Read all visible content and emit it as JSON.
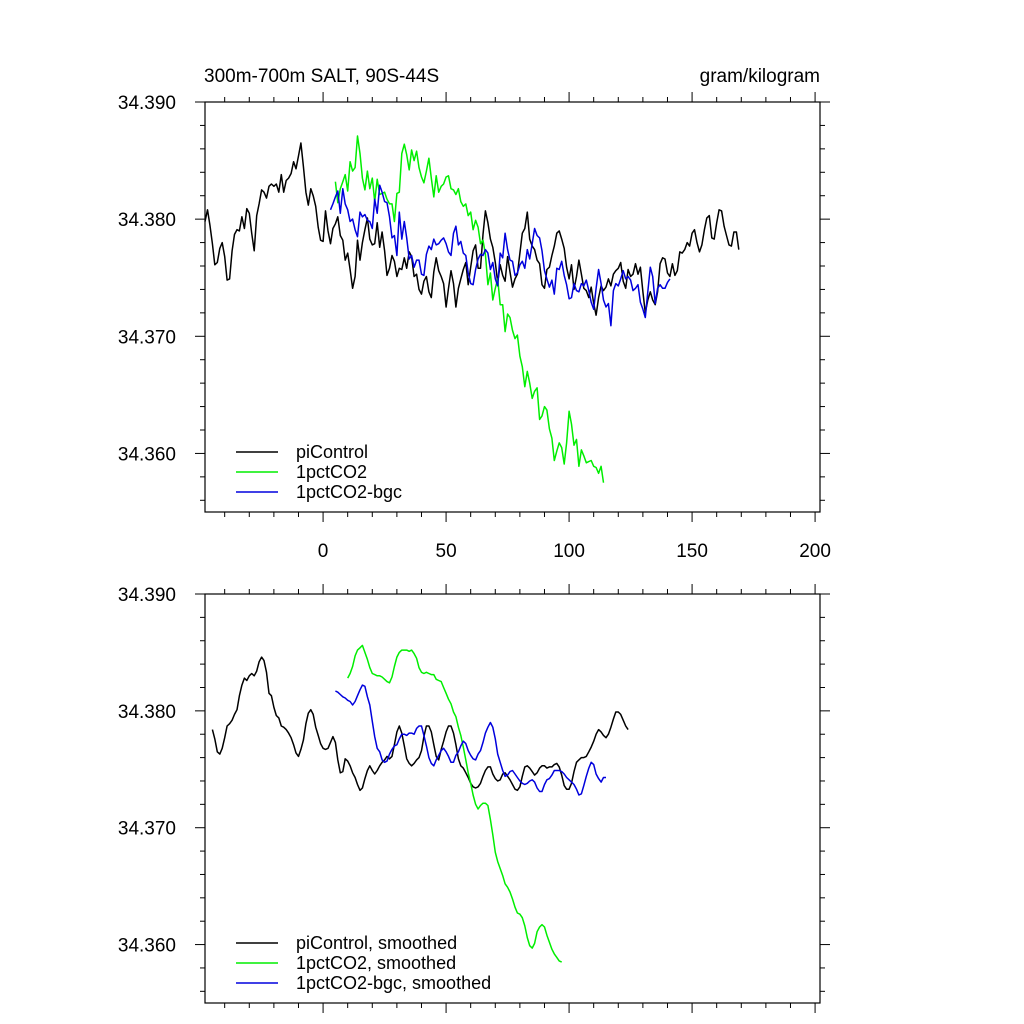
{
  "chart_data": [
    {
      "type": "line",
      "title_left": "300m-700m SALT, 90S-44S",
      "title_right": "gram/kilogram",
      "xlim": [
        -48,
        202
      ],
      "ylim": [
        34.355,
        34.39
      ],
      "x_ticks": [
        0,
        50,
        100,
        150,
        200
      ],
      "x_tick_labels": [
        "0",
        "50",
        "100",
        "150",
        "200"
      ],
      "y_ticks": [
        34.36,
        34.37,
        34.38,
        34.39
      ],
      "y_tick_labels": [
        "34.360",
        "34.370",
        "34.380",
        "34.390"
      ],
      "grid": false,
      "legend_position": "bottom-left",
      "series": [
        {
          "name": "piControl",
          "color": "#000000",
          "x_start": -48,
          "values": [
            34.3798,
            34.3808,
            34.3795,
            34.3779,
            34.3761,
            34.3763,
            34.3775,
            34.378,
            34.3768,
            34.3748,
            34.3749,
            34.3773,
            34.3787,
            34.3791,
            34.379,
            34.3802,
            34.3792,
            34.3809,
            34.3805,
            34.3788,
            34.3773,
            34.3803,
            34.3813,
            34.3825,
            34.3823,
            34.3818,
            34.3828,
            34.383,
            34.3828,
            34.383,
            34.3823,
            34.3838,
            34.3823,
            34.3833,
            34.3835,
            34.3839,
            34.3849,
            34.3843,
            34.3854,
            34.3865,
            34.3845,
            34.3823,
            34.3812,
            34.3826,
            34.382,
            34.3811,
            34.3793,
            34.3782,
            34.3781,
            34.3807,
            34.379,
            34.3779,
            34.3792,
            34.3796,
            34.3802,
            34.3786,
            34.3782,
            34.3765,
            34.3771,
            34.3757,
            34.3741,
            34.3751,
            34.3782,
            34.3765,
            34.378,
            34.3791,
            34.3801,
            34.3783,
            34.3778,
            34.3779,
            34.3797,
            34.3776,
            34.3789,
            34.3773,
            34.3752,
            34.3758,
            34.3769,
            34.3764,
            34.3751,
            34.3758,
            34.3757,
            34.3767,
            34.3758,
            34.3772,
            34.3768,
            34.3751,
            34.3753,
            34.374,
            34.3736,
            34.3747,
            34.3751,
            34.3738,
            34.3733,
            34.3755,
            34.3767,
            34.3756,
            34.3751,
            34.3745,
            34.3725,
            34.3741,
            34.3756,
            34.3745,
            34.3725,
            34.3741,
            34.3749,
            34.3757,
            34.3763,
            34.3744,
            34.3759,
            34.3773,
            34.3778,
            34.3758,
            34.3758,
            34.3787,
            34.3807,
            34.3797,
            34.3783,
            34.3776,
            34.3763,
            34.3746,
            34.3761,
            34.3752,
            34.3747,
            34.3768,
            34.3755,
            34.3742,
            34.3749,
            34.3753,
            34.3771,
            34.3788,
            34.3792,
            34.3806,
            34.3783,
            34.3777,
            34.3774,
            34.3765,
            34.3762,
            34.3744,
            34.3741,
            34.3757,
            34.3759,
            34.3769,
            34.3777,
            34.3788,
            34.379,
            34.3783,
            34.3775,
            34.3759,
            34.3749,
            34.3761,
            34.374,
            34.3751,
            34.3765,
            34.3753,
            34.3741,
            34.3739,
            34.3733,
            34.3742,
            34.3728,
            34.3718,
            34.3733,
            34.3743,
            34.3739,
            34.3742,
            34.3749,
            34.3743,
            34.3753,
            34.3756,
            34.3758,
            34.3763,
            34.3747,
            34.3741,
            34.3757,
            34.3751,
            34.3753,
            34.3762,
            34.3753,
            34.3759,
            34.3738,
            34.372,
            34.3731,
            34.3738,
            34.3731,
            34.3727,
            34.3738,
            34.3762,
            34.3767,
            34.3766,
            34.3754,
            34.3751,
            34.3762,
            34.3752,
            34.3756,
            34.3772,
            34.3771,
            34.3774,
            34.378,
            34.3777,
            34.3788,
            34.3791,
            34.378,
            34.3772,
            34.3778,
            34.3791,
            34.3801,
            34.3803,
            34.3784,
            34.3783,
            34.3797,
            34.3808,
            34.3807,
            34.3794,
            34.3786,
            34.3778,
            34.3777,
            34.3789,
            34.3789,
            34.3774
          ]
        },
        {
          "name": "1pctCO2",
          "color": "#00ee00",
          "x_start": 5,
          "values": [
            34.3832,
            34.3814,
            34.3826,
            34.3832,
            34.3838,
            34.3824,
            34.3849,
            34.3841,
            34.3844,
            34.3871,
            34.3856,
            34.3835,
            34.3825,
            34.3841,
            34.3826,
            34.3835,
            34.3815,
            34.3834,
            34.3821,
            34.3822,
            34.3823,
            34.3817,
            34.3813,
            34.3813,
            34.3798,
            34.3822,
            34.3823,
            34.3856,
            34.3864,
            34.3855,
            34.3842,
            34.3859,
            34.385,
            34.3858,
            34.3844,
            34.3836,
            34.3831,
            34.3841,
            34.3852,
            34.3835,
            34.3819,
            34.3837,
            34.3823,
            34.3828,
            34.383,
            34.3836,
            34.3837,
            34.3826,
            34.3825,
            34.3821,
            34.3826,
            34.3815,
            34.3811,
            34.3813,
            34.3803,
            34.3806,
            34.3791,
            34.3799,
            34.3793,
            34.3779,
            34.3782,
            34.377,
            34.3744,
            34.3754,
            34.3731,
            34.3741,
            34.3749,
            34.3727,
            34.3727,
            34.3704,
            34.3719,
            34.3716,
            34.3705,
            34.3698,
            34.3701,
            34.3683,
            34.3674,
            34.3657,
            34.367,
            34.366,
            34.3647,
            34.3653,
            34.3656,
            34.3629,
            34.3632,
            34.364,
            34.3637,
            34.3621,
            34.3613,
            34.3594,
            34.3602,
            34.3609,
            34.3605,
            34.3591,
            34.3609,
            34.3636,
            34.3625,
            34.3607,
            34.3612,
            34.3589,
            34.3603,
            34.3598,
            34.3592,
            34.3593,
            34.3594,
            34.3589,
            34.3588,
            34.3583,
            34.3589,
            34.3575
          ]
        },
        {
          "name": "1pctCO2-bgc",
          "color": "#0000dd",
          "x_start": 3,
          "values": [
            34.3808,
            34.3813,
            34.3819,
            34.3824,
            34.3805,
            34.3826,
            34.3813,
            34.3808,
            34.3798,
            34.38,
            34.3791,
            34.3785,
            34.3806,
            34.3802,
            34.3804,
            34.3799,
            34.3798,
            34.3792,
            34.3817,
            34.3805,
            34.3829,
            34.3823,
            34.3815,
            34.3814,
            34.3802,
            34.3784,
            34.3786,
            34.3769,
            34.3806,
            34.3783,
            34.3798,
            34.3784,
            34.3766,
            34.3769,
            34.3759,
            34.3765,
            34.3765,
            34.3753,
            34.3752,
            34.377,
            34.3777,
            34.3774,
            34.3783,
            34.3778,
            34.3779,
            34.3782,
            34.3784,
            34.3779,
            34.3772,
            34.3769,
            34.3788,
            34.3794,
            34.3778,
            34.3781,
            34.3771,
            34.3769,
            34.3754,
            34.3745,
            34.3744,
            34.3757,
            34.3766,
            34.377,
            34.3769,
            34.3774,
            34.3771,
            34.3757,
            34.3763,
            34.3749,
            34.3743,
            34.3771,
            34.3767,
            34.3788,
            34.3774,
            34.3765,
            34.3764,
            34.3752,
            34.3754,
            34.3761,
            34.3764,
            34.3758,
            34.3774,
            34.3766,
            34.3779,
            34.3792,
            34.3786,
            34.3784,
            34.3773,
            34.3756,
            34.3749,
            34.3742,
            34.3748,
            34.3736,
            34.3758,
            34.3757,
            34.3764,
            34.3752,
            34.3744,
            34.3732,
            34.3733,
            34.3745,
            34.3739,
            34.3738,
            34.3745,
            34.3743,
            34.3748,
            34.3739,
            34.3729,
            34.3723,
            34.3741,
            34.3757,
            34.3745,
            34.3731,
            34.3725,
            34.3728,
            34.3709,
            34.3739,
            34.3745,
            34.3743,
            34.3749,
            34.3756,
            34.3749,
            34.3751,
            34.3748,
            34.3739,
            34.3741,
            34.3744,
            34.3729,
            34.3723,
            34.3716,
            34.3738,
            34.3759,
            34.3751,
            34.3728,
            34.3741,
            34.3744,
            34.3741,
            34.3741,
            34.3746,
            34.3749
          ]
        }
      ]
    },
    {
      "type": "line",
      "xlim": [
        -48,
        202
      ],
      "ylim": [
        34.355,
        34.39
      ],
      "x_ticks": [
        0,
        50,
        100,
        150,
        200
      ],
      "y_ticks": [
        34.36,
        34.37,
        34.38,
        34.39
      ],
      "y_tick_labels": [
        "34.360",
        "34.370",
        "34.380",
        "34.390"
      ],
      "grid": false,
      "legend_position": "bottom-left",
      "series": [
        {
          "name": "piControl, smoothed",
          "color": "#000000",
          "x_start": -45,
          "values": [
            34.3784,
            34.3776,
            34.3765,
            34.3763,
            34.3768,
            34.3777,
            34.3787,
            34.3789,
            34.3792,
            34.3797,
            34.3801,
            34.3813,
            34.3822,
            34.3828,
            34.3826,
            34.383,
            34.3832,
            34.383,
            34.3834,
            34.3842,
            34.3846,
            34.3843,
            34.3833,
            34.3815,
            34.3813,
            34.3803,
            34.3796,
            34.3794,
            34.3787,
            34.3786,
            34.3784,
            34.3781,
            34.3777,
            34.3771,
            34.3764,
            34.3761,
            34.3767,
            34.3775,
            34.3789,
            34.3798,
            34.3801,
            34.3797,
            34.3786,
            34.3779,
            34.3772,
            34.3768,
            34.3767,
            34.3768,
            34.3773,
            34.3778,
            34.3773,
            34.3758,
            34.3747,
            34.3748,
            34.3759,
            34.3757,
            34.3753,
            34.3747,
            34.3743,
            34.3737,
            34.3732,
            34.3734,
            34.3742,
            34.3749,
            34.3753,
            34.3749,
            34.3746,
            34.3749,
            34.3753,
            34.3756,
            34.3758,
            34.3761,
            34.3759,
            34.3761,
            34.3771,
            34.3782,
            34.3787,
            34.3781,
            34.377,
            34.3759,
            34.3755,
            34.3753,
            34.3755,
            34.3758,
            34.376,
            34.3766,
            34.3778,
            34.3787,
            34.3787,
            34.3782,
            34.3771,
            34.3761,
            34.3758,
            34.3767,
            34.3774,
            34.3782,
            34.3787,
            34.3787,
            34.3781,
            34.3771,
            34.3759,
            34.3753,
            34.3751,
            34.3747,
            34.3743,
            34.3738,
            34.3735,
            34.3734,
            34.3735,
            34.3738,
            34.3744,
            34.3749,
            34.3752,
            34.3752,
            34.3746,
            34.3742,
            34.374,
            34.3741,
            34.3746,
            34.3747,
            34.3744,
            34.3741,
            34.3737,
            34.3733,
            34.3732,
            34.3735,
            34.3744,
            34.3752,
            34.3753,
            34.3751,
            34.3748,
            34.3745,
            34.3747,
            34.3751,
            34.3753,
            34.3753,
            34.3751,
            34.3752,
            34.3752,
            34.3754,
            34.3755,
            34.3752,
            34.3745,
            34.3736,
            34.3733,
            34.3733,
            34.3738,
            34.3748,
            34.3756,
            34.3758,
            34.376,
            34.376,
            34.3761,
            34.3765,
            34.3769,
            34.3774,
            34.378,
            34.3784,
            34.3782,
            34.3779,
            34.3777,
            34.378,
            34.3786,
            34.3793,
            34.3799,
            34.3799,
            34.3797,
            34.3792,
            34.3787,
            34.3784
          ]
        },
        {
          "name": "1pctCO2, smoothed",
          "color": "#00ee00",
          "x_start": 10,
          "values": [
            34.3828,
            34.3832,
            34.3838,
            34.3847,
            34.3852,
            34.3854,
            34.3856,
            34.385,
            34.3844,
            34.3837,
            34.3832,
            34.3831,
            34.383,
            34.383,
            34.3829,
            34.3827,
            34.3825,
            34.3824,
            34.3829,
            34.3838,
            34.3846,
            34.385,
            34.3852,
            34.3852,
            34.3852,
            34.3851,
            34.3852,
            34.3849,
            34.3845,
            34.3837,
            34.3833,
            34.3832,
            34.3833,
            34.3832,
            34.3831,
            34.3831,
            34.3827,
            34.3826,
            34.3825,
            34.382,
            34.3815,
            34.381,
            34.3806,
            34.3799,
            34.3795,
            34.3786,
            34.3779,
            34.3769,
            34.3758,
            34.3747,
            34.3738,
            34.3728,
            34.372,
            34.3716,
            34.3719,
            34.3721,
            34.3721,
            34.3719,
            34.3707,
            34.3694,
            34.3679,
            34.3671,
            34.3665,
            34.3659,
            34.3652,
            34.3649,
            34.3645,
            34.3639,
            34.3632,
            34.3627,
            34.3626,
            34.3623,
            34.3616,
            34.3606,
            34.3599,
            34.3597,
            34.3601,
            34.3611,
            34.3615,
            34.3617,
            34.3615,
            34.3608,
            34.3602,
            34.3596,
            34.3592,
            34.3589,
            34.3586,
            34.3585
          ]
        },
        {
          "name": "1pctCO2-bgc, smoothed",
          "color": "#0000dd",
          "x_start": 5,
          "values": [
            34.3817,
            34.3816,
            34.3814,
            34.3812,
            34.3811,
            34.3809,
            34.3808,
            34.3805,
            34.3808,
            34.3813,
            34.3818,
            34.3822,
            34.3821,
            34.3812,
            34.3805,
            34.3791,
            34.3778,
            34.3768,
            34.3765,
            34.3758,
            34.3756,
            34.3757,
            34.3763,
            34.3767,
            34.377,
            34.3771,
            34.3776,
            34.378,
            34.378,
            34.3779,
            34.3781,
            34.3781,
            34.378,
            34.3785,
            34.3787,
            34.3787,
            34.3779,
            34.377,
            34.376,
            34.3755,
            34.3753,
            34.3758,
            34.3762,
            34.3766,
            34.3768,
            34.3765,
            34.3761,
            34.3756,
            34.3756,
            34.3762,
            34.3765,
            34.377,
            34.3774,
            34.3772,
            34.3766,
            34.3762,
            34.3759,
            34.3758,
            34.3763,
            34.3766,
            34.3773,
            34.3781,
            34.3786,
            34.379,
            34.3786,
            34.3776,
            34.3763,
            34.3756,
            34.3749,
            34.3744,
            34.3745,
            34.3748,
            34.3749,
            34.3746,
            34.3743,
            34.374,
            34.3738,
            34.3737,
            34.3738,
            34.374,
            34.3741,
            34.3739,
            34.3734,
            34.3731,
            34.3731,
            34.3737,
            34.3741,
            34.3742,
            34.3745,
            34.3749,
            34.3749,
            34.3749,
            34.3748,
            34.3746,
            34.3743,
            34.3741,
            34.3739,
            34.3737,
            34.3733,
            34.3728,
            34.3729,
            34.3736,
            34.3744,
            34.3751,
            34.3756,
            34.3754,
            34.3746,
            34.3742,
            34.3739,
            34.3743,
            34.3743
          ]
        }
      ]
    }
  ]
}
